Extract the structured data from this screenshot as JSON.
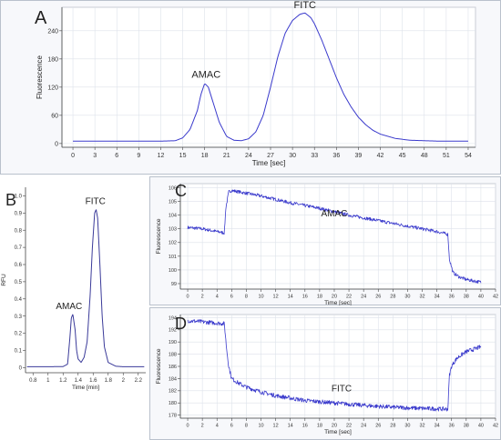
{
  "chart_data": [
    {
      "panel": "A",
      "type": "line",
      "xlabel": "Time [sec]",
      "ylabel": "Fluorescence",
      "xlim": [
        -1.5,
        55
      ],
      "ylim": [
        -8,
        290
      ],
      "xticks": [
        0,
        3,
        6,
        9,
        12,
        15,
        18,
        21,
        24,
        27,
        30,
        33,
        36,
        39,
        42,
        45,
        48,
        51,
        54
      ],
      "yticks": [
        0,
        60,
        120,
        180,
        240
      ],
      "grid": true,
      "line_color": "#3a3acc",
      "annotations": [
        {
          "text": "AMAC",
          "x": 18.2,
          "y": 128
        },
        {
          "text": "FITC",
          "x": 31.7,
          "y": 276
        }
      ],
      "series": [
        {
          "x": [
            0,
            6,
            12,
            14,
            15,
            16,
            17,
            17.5,
            18,
            18.5,
            19,
            20,
            21,
            22,
            23,
            24,
            25,
            26,
            27,
            28,
            29,
            30,
            31,
            31.7,
            32.5,
            33,
            34,
            35,
            36,
            37,
            38,
            39,
            40,
            41,
            42,
            44,
            46,
            48,
            50,
            52,
            54
          ],
          "y": [
            5,
            5,
            5,
            6,
            12,
            30,
            70,
            105,
            128,
            120,
            95,
            45,
            15,
            7,
            6,
            10,
            25,
            60,
            120,
            185,
            235,
            262,
            275,
            278,
            268,
            255,
            220,
            180,
            140,
            105,
            78,
            56,
            40,
            28,
            20,
            11,
            7,
            6,
            5,
            5,
            5
          ]
        }
      ]
    },
    {
      "panel": "B",
      "type": "line",
      "xlabel": "Time [min]",
      "ylabel": "RFU",
      "xlim": [
        0.7,
        2.3
      ],
      "ylim": [
        -0.03,
        1.05
      ],
      "xticks": [
        0.8,
        1.0,
        1.2,
        1.4,
        1.6,
        1.8,
        2.0,
        2.2
      ],
      "yticks": [
        0,
        0.1,
        0.2,
        0.3,
        0.4,
        0.5,
        0.6,
        0.7,
        0.8,
        0.9,
        1.0
      ],
      "grid": false,
      "line_color": "#3a3a99",
      "annotations": [
        {
          "text": "AMAC",
          "x": 1.28,
          "y": 0.31
        },
        {
          "text": "FITC",
          "x": 1.63,
          "y": 0.92
        }
      ],
      "series": [
        {
          "x": [
            0.72,
            1.0,
            1.2,
            1.26,
            1.29,
            1.31,
            1.33,
            1.36,
            1.38,
            1.4,
            1.44,
            1.48,
            1.52,
            1.56,
            1.59,
            1.62,
            1.64,
            1.66,
            1.69,
            1.72,
            1.75,
            1.8,
            1.9,
            2.0,
            2.28
          ],
          "y": [
            0.005,
            0.005,
            0.006,
            0.02,
            0.17,
            0.29,
            0.31,
            0.22,
            0.1,
            0.05,
            0.03,
            0.06,
            0.15,
            0.42,
            0.7,
            0.9,
            0.92,
            0.87,
            0.6,
            0.3,
            0.12,
            0.03,
            0.008,
            0.005,
            0.005
          ]
        }
      ]
    },
    {
      "panel": "C",
      "type": "line",
      "xlabel": "Time [sec]",
      "ylabel": "Fluorescence",
      "xlim": [
        -1,
        42
      ],
      "ylim": [
        98.6,
        106.3
      ],
      "xticks": [
        0,
        2,
        4,
        6,
        8,
        10,
        12,
        14,
        16,
        18,
        20,
        22,
        24,
        26,
        28,
        30,
        32,
        34,
        36,
        38,
        40,
        42
      ],
      "yticks": [
        99,
        100,
        101,
        102,
        103,
        104,
        105,
        106
      ],
      "grid": true,
      "line_color": "#3a3acc",
      "annotations": [
        {
          "text": "AMAC",
          "x": 20,
          "y": 103.5
        }
      ],
      "series": [
        {
          "x": [
            0,
            2,
            4,
            5,
            5.2,
            5.6,
            6,
            8,
            10,
            14,
            18,
            22,
            26,
            30,
            34,
            35.5,
            35.7,
            36.2,
            37,
            38,
            40
          ],
          "y": [
            103.1,
            103.0,
            102.8,
            102.7,
            104.5,
            105.7,
            105.8,
            105.6,
            105.4,
            104.9,
            104.5,
            104.0,
            103.6,
            103.2,
            102.8,
            102.6,
            100.8,
            99.8,
            99.5,
            99.3,
            99.1
          ]
        }
      ]
    },
    {
      "panel": "D",
      "type": "line",
      "xlabel": "Time [sec]",
      "ylabel": "Fluorescence",
      "xlim": [
        -1,
        42
      ],
      "ylim": [
        177.5,
        194.5
      ],
      "xticks": [
        0,
        2,
        4,
        6,
        8,
        10,
        12,
        14,
        16,
        18,
        20,
        22,
        24,
        26,
        28,
        30,
        32,
        34,
        36,
        38,
        40,
        42
      ],
      "yticks": [
        178,
        180,
        182,
        184,
        186,
        188,
        190,
        192,
        194
      ],
      "grid": true,
      "line_color": "#3a3acc",
      "annotations": [
        {
          "text": "FITC",
          "x": 21,
          "y": 181
        }
      ],
      "series": [
        {
          "x": [
            0,
            2,
            4,
            5,
            5.3,
            5.6,
            6,
            7,
            8,
            10,
            12,
            14,
            16,
            18,
            20,
            24,
            28,
            32,
            35,
            35.5,
            35.7,
            36,
            36.5,
            37,
            38,
            40
          ],
          "y": [
            193.5,
            193.3,
            193.1,
            193.0,
            189,
            186,
            184,
            183.2,
            182.6,
            181.8,
            181.2,
            180.8,
            180.4,
            180.2,
            180.0,
            179.6,
            179.3,
            179.1,
            179.0,
            179.0,
            184.5,
            186.0,
            187.0,
            187.6,
            188.4,
            189.2
          ]
        }
      ]
    }
  ],
  "panel_letters": [
    "A",
    "B",
    "C",
    "D"
  ]
}
